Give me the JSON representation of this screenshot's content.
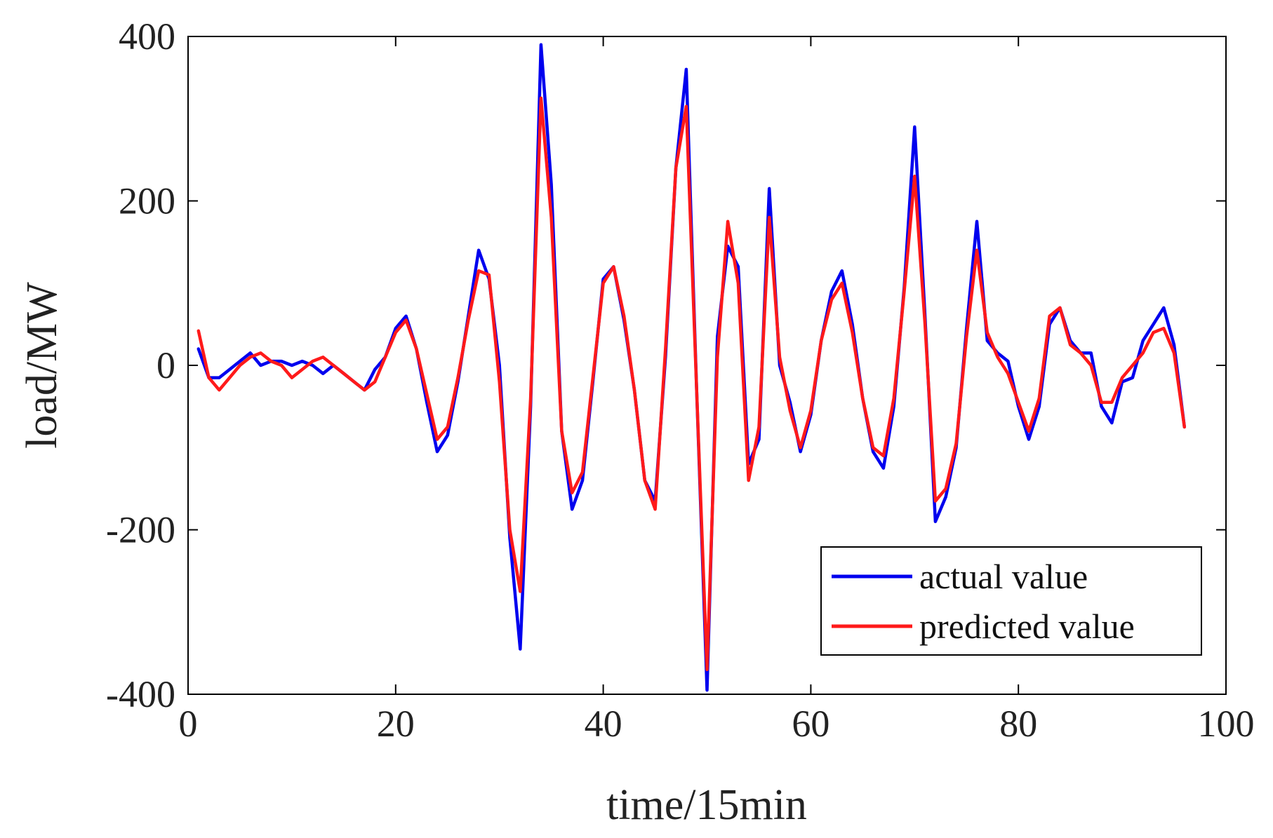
{
  "chart_data": {
    "type": "line",
    "title": "",
    "xlabel": "time/15min",
    "ylabel": "load/MW",
    "xlim": [
      0,
      100
    ],
    "ylim": [
      -400,
      400
    ],
    "xticks": [
      0,
      20,
      40,
      60,
      80,
      100
    ],
    "yticks": [
      -400,
      -200,
      0,
      200,
      400
    ],
    "xtick_labels": [
      "0",
      "20",
      "40",
      "60",
      "80",
      "100"
    ],
    "ytick_labels": [
      "-400",
      "-200",
      "0",
      "200",
      "400"
    ],
    "grid": false,
    "legend_position": "bottom-right",
    "x": [
      1,
      2,
      3,
      4,
      5,
      6,
      7,
      8,
      9,
      10,
      11,
      12,
      13,
      14,
      15,
      16,
      17,
      18,
      19,
      20,
      21,
      22,
      23,
      24,
      25,
      26,
      27,
      28,
      29,
      30,
      31,
      32,
      33,
      34,
      35,
      36,
      37,
      38,
      39,
      40,
      41,
      42,
      43,
      44,
      45,
      46,
      47,
      48,
      49,
      50,
      51,
      52,
      53,
      54,
      55,
      56,
      57,
      58,
      59,
      60,
      61,
      62,
      63,
      64,
      65,
      66,
      67,
      68,
      69,
      70,
      71,
      72,
      73,
      74,
      75,
      76,
      77,
      78,
      79,
      80,
      81,
      82,
      83,
      84,
      85,
      86,
      87,
      88,
      89,
      90,
      91,
      92,
      93,
      94,
      95,
      96
    ],
    "series": [
      {
        "name": "actual value",
        "color": "#0000ee",
        "values": [
          20,
          -15,
          -15,
          -5,
          5,
          15,
          0,
          5,
          5,
          0,
          5,
          0,
          -10,
          0,
          -10,
          -20,
          -30,
          -5,
          10,
          45,
          60,
          20,
          -45,
          -105,
          -85,
          -20,
          60,
          140,
          105,
          0,
          -210,
          -345,
          -50,
          390,
          220,
          -80,
          -175,
          -140,
          -20,
          105,
          120,
          55,
          -30,
          -140,
          -165,
          10,
          240,
          360,
          -30,
          -395,
          35,
          145,
          120,
          -120,
          -90,
          215,
          0,
          -45,
          -105,
          -60,
          30,
          90,
          115,
          50,
          -40,
          -105,
          -125,
          -50,
          95,
          290,
          60,
          -190,
          -160,
          -100,
          45,
          175,
          30,
          15,
          5,
          -50,
          -90,
          -50,
          50,
          70,
          30,
          15,
          15,
          -50,
          -70,
          -20,
          -15,
          30,
          50,
          70,
          25,
          -75
        ]
      },
      {
        "name": "predicted value",
        "color": "#ff1a1a",
        "values": [
          42,
          -15,
          -30,
          -15,
          0,
          10,
          15,
          5,
          0,
          -15,
          -5,
          5,
          10,
          0,
          -10,
          -20,
          -30,
          -20,
          10,
          40,
          55,
          20,
          -35,
          -90,
          -75,
          -15,
          55,
          115,
          110,
          -20,
          -200,
          -275,
          -40,
          325,
          180,
          -80,
          -155,
          -130,
          -15,
          100,
          120,
          60,
          -30,
          -140,
          -175,
          20,
          240,
          315,
          -30,
          -370,
          10,
          175,
          100,
          -140,
          -75,
          180,
          10,
          -55,
          -100,
          -55,
          30,
          80,
          100,
          40,
          -40,
          -100,
          -110,
          -40,
          90,
          230,
          50,
          -165,
          -150,
          -95,
          35,
          140,
          40,
          10,
          -10,
          -45,
          -80,
          -40,
          60,
          70,
          25,
          15,
          0,
          -45,
          -45,
          -15,
          0,
          15,
          40,
          45,
          15,
          -75
        ]
      }
    ]
  }
}
